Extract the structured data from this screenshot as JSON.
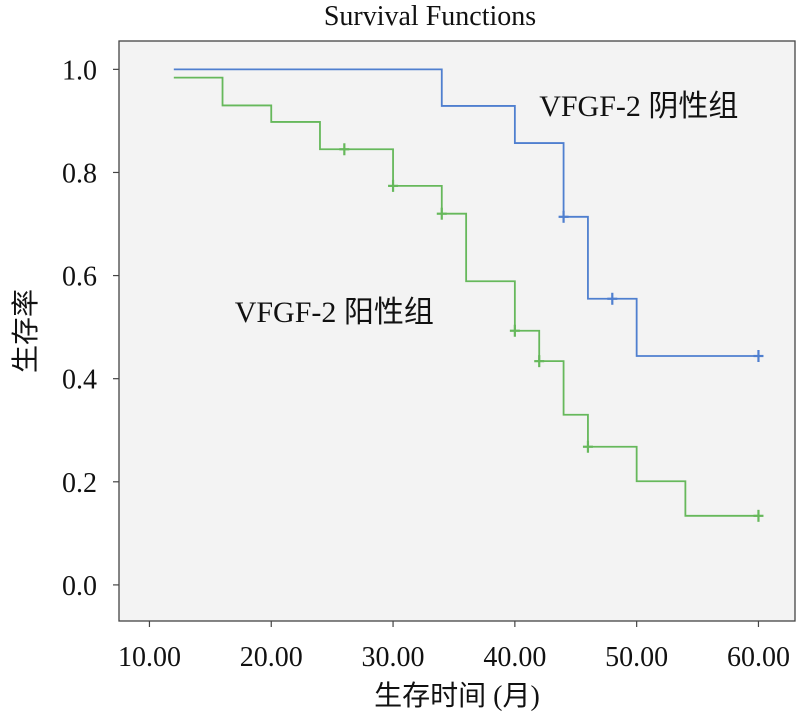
{
  "chart_data": {
    "type": "line",
    "title": "Survival Functions",
    "xlabel": "生存时间 (月)",
    "ylabel": "生存率",
    "xlim": [
      7.5,
      63
    ],
    "ylim": [
      -0.07,
      1.055
    ],
    "x_ticks": [
      10,
      20,
      30,
      40,
      50,
      60
    ],
    "x_tick_labels": [
      "10.00",
      "20.00",
      "30.00",
      "40.00",
      "50.00",
      "60.00"
    ],
    "y_ticks": [
      0.0,
      0.2,
      0.4,
      0.6,
      0.8,
      1.0
    ],
    "y_tick_labels": [
      "0.0",
      "0.2",
      "0.4",
      "0.6",
      "0.8",
      "1.0"
    ],
    "grid": false,
    "legend": "none",
    "series": [
      {
        "name": "VFGF-2 阴性组",
        "color": "#4f7fcf",
        "label": "VFGF-2 阴性组",
        "label_at": [
          42,
          0.91
        ],
        "steps": [
          [
            12,
            1.0
          ],
          [
            34,
            0.929
          ],
          [
            40,
            0.857
          ],
          [
            44,
            0.714
          ],
          [
            46,
            0.555
          ],
          [
            50,
            0.444
          ],
          [
            60,
            0.444
          ]
        ],
        "censored": [
          [
            44,
            0.714
          ],
          [
            48,
            0.555
          ],
          [
            60,
            0.444
          ]
        ]
      },
      {
        "name": "VFGF-2 阳性组",
        "color": "#66b85b",
        "label": "VFGF-2 阳性组",
        "label_at": [
          17,
          0.51
        ],
        "steps": [
          [
            12,
            0.984
          ],
          [
            16,
            0.93
          ],
          [
            20,
            0.898
          ],
          [
            24,
            0.845
          ],
          [
            30,
            0.774
          ],
          [
            34,
            0.72
          ],
          [
            36,
            0.589
          ],
          [
            40,
            0.493
          ],
          [
            42,
            0.434
          ],
          [
            44,
            0.33
          ],
          [
            46,
            0.268
          ],
          [
            50,
            0.201
          ],
          [
            54,
            0.134
          ],
          [
            60,
            0.134
          ]
        ],
        "censored": [
          [
            26,
            0.845
          ],
          [
            30,
            0.774
          ],
          [
            34,
            0.72
          ],
          [
            40,
            0.493
          ],
          [
            42,
            0.434
          ],
          [
            46,
            0.268
          ],
          [
            60,
            0.134
          ]
        ]
      }
    ]
  }
}
